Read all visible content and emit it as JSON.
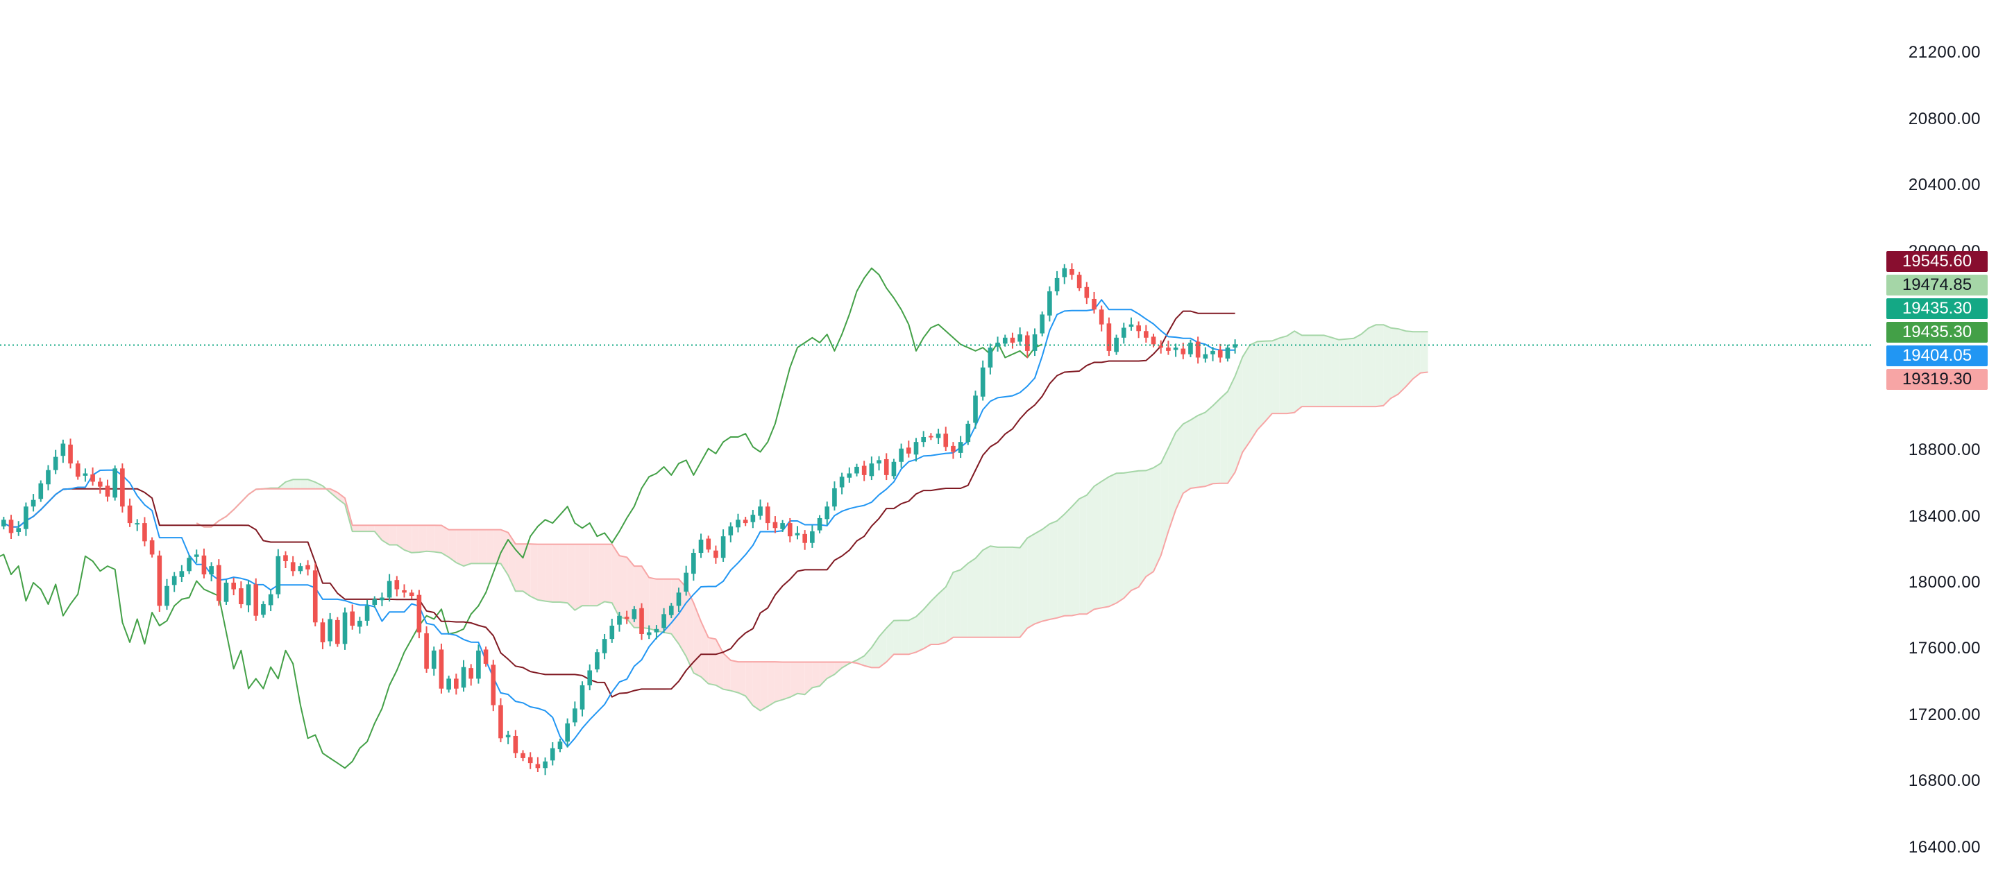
{
  "chart_data": {
    "type": "candlestick",
    "indicator": "ichimoku",
    "y_axis": {
      "ticks": [
        "21200.00",
        "20800.00",
        "20400.00",
        "20000.00",
        "18800.00",
        "18400.00",
        "18000.00",
        "17600.00",
        "17200.00",
        "16800.00",
        "16400.00"
      ],
      "tick_values": [
        21200,
        20800,
        20400,
        20000,
        18800,
        18400,
        18000,
        17600,
        17200,
        16800,
        16400
      ],
      "ylim": [
        16240,
        21520
      ],
      "position": "right"
    },
    "current_price_line": 19435.3,
    "price_tags": [
      {
        "label": "19545.60",
        "value": 19545.6,
        "bg": "#880e2f",
        "fg": "#ffffff"
      },
      {
        "label": "19474.85",
        "value": 19474.85,
        "bg": "#a5d6a7",
        "fg": "#131722"
      },
      {
        "label": "19435.30",
        "value": 19435.3,
        "bg": "#14a885",
        "fg": "#ffffff"
      },
      {
        "label": "19435.30",
        "value": 19435.3,
        "bg": "#43a047",
        "fg": "#ffffff"
      },
      {
        "label": "19404.05",
        "value": 19404.05,
        "bg": "#2196f3",
        "fg": "#ffffff"
      },
      {
        "label": "19319.30",
        "value": 19319.3,
        "bg": "#f7a5a5",
        "fg": "#131722"
      }
    ],
    "colors": {
      "up": "#26a69a",
      "down": "#ef5350",
      "conversion_line": "#2196f3",
      "base_line": "#801922",
      "lagging_span": "#43a047",
      "leading_span_a": "#a5d6a7",
      "leading_span_b": "#f7a5a5",
      "cloud_bull": "#e8f5e9",
      "cloud_bear": "#fde2e2",
      "price_line": "#14a885"
    },
    "candles_close": [
      18380,
      18300,
      18330,
      18460,
      18500,
      18600,
      18680,
      18760,
      18840,
      18720,
      18640,
      18660,
      18610,
      18580,
      18520,
      18690,
      18460,
      18360,
      18360,
      18250,
      18170,
      17860,
      17980,
      18040,
      18070,
      18150,
      18170,
      18050,
      18100,
      17890,
      18000,
      17960,
      17870,
      17990,
      17800,
      17870,
      17930,
      18160,
      18130,
      18070,
      18100,
      18080,
      17760,
      17640,
      17780,
      17630,
      17820,
      17740,
      17770,
      17860,
      17900,
      17910,
      18010,
      17960,
      17940,
      17920,
      17700,
      17480,
      17590,
      17360,
      17420,
      17360,
      17490,
      17420,
      17590,
      17510,
      17260,
      17060,
      17080,
      16970,
      16940,
      16910,
      16880,
      16920,
      17000,
      17040,
      17150,
      17240,
      17380,
      17470,
      17580,
      17660,
      17740,
      17800,
      17780,
      17840,
      17690,
      17700,
      17720,
      17810,
      17860,
      17940,
      18060,
      18180,
      18260,
      18200,
      18150,
      18280,
      18340,
      18380,
      18360,
      18410,
      18460,
      18360,
      18330,
      18360,
      18280,
      18300,
      18240,
      18310,
      18390,
      18460,
      18570,
      18640,
      18660,
      18700,
      18650,
      18720,
      18740,
      18650,
      18730,
      18810,
      18780,
      18850,
      18880,
      18880,
      18900,
      18820,
      18790,
      18850,
      18960,
      19130,
      19300,
      19420,
      19450,
      19480,
      19450,
      19500,
      19400,
      19500,
      19620,
      19760,
      19840,
      19900,
      19860,
      19780,
      19720,
      19650,
      19560,
      19400,
      19480,
      19540,
      19560,
      19520,
      19480,
      19440,
      19420,
      19400,
      19420,
      19380,
      19450,
      19360,
      19380,
      19400,
      19360,
      19420,
      19440
    ]
  }
}
